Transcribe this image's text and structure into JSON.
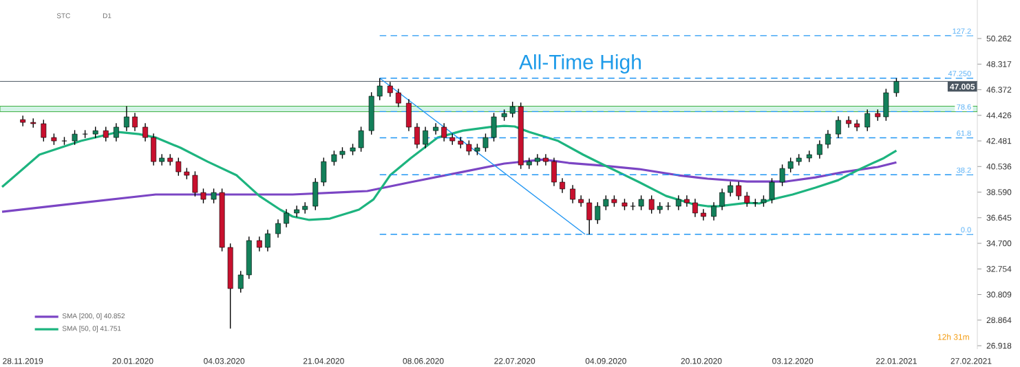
{
  "chart_data": {
    "type": "candlestick",
    "xlim": [
      "2019-11-17",
      "2021-03-02"
    ],
    "ylim": [
      26.66,
      53.19
    ],
    "xticks": [
      {
        "value": "2019-11-28",
        "label": "28.11.2019"
      },
      {
        "value": "2020-01-20",
        "label": "20.01.2020"
      },
      {
        "value": "2020-03-04",
        "label": "04.03.2020"
      },
      {
        "value": "2020-04-21",
        "label": "21.04.2020"
      },
      {
        "value": "2020-06-08",
        "label": "08.06.2020"
      },
      {
        "value": "2020-07-22",
        "label": "22.07.2020"
      },
      {
        "value": "2020-09-04",
        "label": "04.09.2020"
      },
      {
        "value": "2020-10-20",
        "label": "20.10.2020"
      },
      {
        "value": "2020-12-03",
        "label": "03.12.2020"
      },
      {
        "value": "2021-01-22",
        "label": "22.01.2021"
      },
      {
        "value": "2021-02-27",
        "label": "27.02.2021"
      }
    ],
    "yticks": [
      {
        "value": 26.918,
        "label": "26.918"
      },
      {
        "value": 28.864,
        "label": "28.864"
      },
      {
        "value": 30.809,
        "label": "30.809"
      },
      {
        "value": 32.754,
        "label": "32.754"
      },
      {
        "value": 34.7,
        "label": "34.700"
      },
      {
        "value": 36.645,
        "label": "36.645"
      },
      {
        "value": 38.59,
        "label": "38.590"
      },
      {
        "value": 40.536,
        "label": "40.536"
      },
      {
        "value": 42.481,
        "label": "42.481"
      },
      {
        "value": 44.426,
        "label": "44.426"
      },
      {
        "value": 46.372,
        "label": "46.372"
      },
      {
        "value": 48.317,
        "label": "48.317"
      },
      {
        "value": 50.262,
        "label": "50.262"
      }
    ],
    "legend": "bottom left",
    "bands": [
      {
        "axis": "y",
        "from": 44.7,
        "to": 45.12,
        "color": "#d3f3e6"
      }
    ],
    "ref_lines": [
      {
        "axis": "y",
        "value": 47.005,
        "label": "47.005",
        "color": "#4b5661"
      }
    ],
    "annotations": [
      "All-Time High",
      "STC",
      "D1",
      "12h 31m"
    ],
    "series": [
      {
        "x": [
          "2019-11-28",
          "2019-12-03",
          "2019-12-08",
          "2019-12-13",
          "2019-12-18",
          "2019-12-23",
          "2019-12-28",
          "2020-01-02",
          "2020-01-07",
          "2020-01-12",
          "2020-01-17",
          "2020-01-21",
          "2020-01-26",
          "2020-01-30",
          "2020-02-03",
          "2020-02-07",
          "2020-02-11",
          "2020-02-15",
          "2020-02-19",
          "2020-02-23",
          "2020-02-28",
          "2020-03-03",
          "2020-03-07",
          "2020-03-12",
          "2020-03-16",
          "2020-03-21",
          "2020-03-25",
          "2020-03-30",
          "2020-04-03",
          "2020-04-08",
          "2020-04-12",
          "2020-04-17",
          "2020-04-21",
          "2020-04-26",
          "2020-04-30",
          "2020-05-05",
          "2020-05-09",
          "2020-05-14",
          "2020-05-18",
          "2020-05-23",
          "2020-05-27",
          "2020-06-01",
          "2020-06-05",
          "2020-06-09",
          "2020-06-14",
          "2020-06-18",
          "2020-06-22",
          "2020-06-26",
          "2020-06-30",
          "2020-07-04",
          "2020-07-08",
          "2020-07-12",
          "2020-07-17",
          "2020-07-21",
          "2020-07-25",
          "2020-07-29",
          "2020-08-02",
          "2020-08-06",
          "2020-08-10",
          "2020-08-14",
          "2020-08-19",
          "2020-08-23",
          "2020-08-27",
          "2020-08-31",
          "2020-09-04",
          "2020-09-08",
          "2020-09-13",
          "2020-09-17",
          "2020-09-21",
          "2020-09-26",
          "2020-09-30",
          "2020-10-04",
          "2020-10-09",
          "2020-10-13",
          "2020-10-17",
          "2020-10-21",
          "2020-10-26",
          "2020-10-30",
          "2020-11-03",
          "2020-11-07",
          "2020-11-11",
          "2020-11-15",
          "2020-11-19",
          "2020-11-23",
          "2020-11-28",
          "2020-12-02",
          "2020-12-06",
          "2020-12-11",
          "2020-12-16",
          "2020-12-20",
          "2020-12-25",
          "2020-12-30",
          "2021-01-03",
          "2021-01-08",
          "2021-01-13",
          "2021-01-17",
          "2021-01-22"
        ],
        "ohlc": [
          [
            44.1,
            44.4,
            43.59,
            43.89
          ],
          [
            43.89,
            44.19,
            43.49,
            43.79
          ],
          [
            43.79,
            44.09,
            42.44,
            42.74
          ],
          [
            42.74,
            43.04,
            42.18,
            42.48
          ],
          [
            42.48,
            42.78,
            42.18,
            42.48
          ],
          [
            42.48,
            43.3,
            42.18,
            43.0
          ],
          [
            43.0,
            43.3,
            42.7,
            43.0
          ],
          [
            43.0,
            43.56,
            42.7,
            43.26
          ],
          [
            43.26,
            43.56,
            42.44,
            42.74
          ],
          [
            42.74,
            43.83,
            42.44,
            43.53
          ],
          [
            43.53,
            45.12,
            43.23,
            44.31
          ],
          [
            44.31,
            44.61,
            43.23,
            43.53
          ],
          [
            43.53,
            43.83,
            42.44,
            42.74
          ],
          [
            42.74,
            43.04,
            40.61,
            40.91
          ],
          [
            40.91,
            41.48,
            40.61,
            41.18
          ],
          [
            41.18,
            41.48,
            40.61,
            40.91
          ],
          [
            40.91,
            41.21,
            39.83,
            40.13
          ],
          [
            40.13,
            40.43,
            39.57,
            39.87
          ],
          [
            39.87,
            40.17,
            38.26,
            38.56
          ],
          [
            38.56,
            38.86,
            37.74,
            38.04
          ],
          [
            38.04,
            38.86,
            37.74,
            38.56
          ],
          [
            38.56,
            38.86,
            34.09,
            34.39
          ],
          [
            34.39,
            34.69,
            28.22,
            31.26
          ],
          [
            31.26,
            32.6,
            30.96,
            32.3
          ],
          [
            32.3,
            35.21,
            32.0,
            34.91
          ],
          [
            34.91,
            35.21,
            34.09,
            34.39
          ],
          [
            34.39,
            35.73,
            34.09,
            35.43
          ],
          [
            35.43,
            36.51,
            35.13,
            36.21
          ],
          [
            36.21,
            37.3,
            35.91,
            37.0
          ],
          [
            37.0,
            37.56,
            36.7,
            37.26
          ],
          [
            37.26,
            37.82,
            36.96,
            37.52
          ],
          [
            37.52,
            39.65,
            37.22,
            39.35
          ],
          [
            39.35,
            41.21,
            39.05,
            40.91
          ],
          [
            40.91,
            41.74,
            40.61,
            41.44
          ],
          [
            41.44,
            42.0,
            41.14,
            41.7
          ],
          [
            41.7,
            42.26,
            41.4,
            41.96
          ],
          [
            41.96,
            43.56,
            41.66,
            43.26
          ],
          [
            43.26,
            46.18,
            42.96,
            45.88
          ],
          [
            45.88,
            47.25,
            45.58,
            46.66
          ],
          [
            46.66,
            46.96,
            45.84,
            46.14
          ],
          [
            46.14,
            46.44,
            45.05,
            45.35
          ],
          [
            45.35,
            45.65,
            43.23,
            43.53
          ],
          [
            43.53,
            43.83,
            41.92,
            42.22
          ],
          [
            42.22,
            43.56,
            41.92,
            43.26
          ],
          [
            43.26,
            43.83,
            42.96,
            43.53
          ],
          [
            43.53,
            43.83,
            42.44,
            42.74
          ],
          [
            42.74,
            43.04,
            42.18,
            42.48
          ],
          [
            42.48,
            42.78,
            41.92,
            42.22
          ],
          [
            42.22,
            42.52,
            41.4,
            41.7
          ],
          [
            41.7,
            42.26,
            41.4,
            41.96
          ],
          [
            41.96,
            43.04,
            41.66,
            42.74
          ],
          [
            42.74,
            44.61,
            42.44,
            44.31
          ],
          [
            44.31,
            44.87,
            44.01,
            44.57
          ],
          [
            44.57,
            45.46,
            44.27,
            45.09
          ],
          [
            45.09,
            45.39,
            40.35,
            40.65
          ],
          [
            40.65,
            41.21,
            40.35,
            40.91
          ],
          [
            40.91,
            41.48,
            40.61,
            41.18
          ],
          [
            41.18,
            41.48,
            40.61,
            40.91
          ],
          [
            40.91,
            41.21,
            39.05,
            39.35
          ],
          [
            39.35,
            39.65,
            38.53,
            38.83
          ],
          [
            38.83,
            39.13,
            37.74,
            38.04
          ],
          [
            38.04,
            38.34,
            37.48,
            37.78
          ],
          [
            37.78,
            38.08,
            35.38,
            36.48
          ],
          [
            36.48,
            37.82,
            36.18,
            37.52
          ],
          [
            37.52,
            38.34,
            37.22,
            38.04
          ],
          [
            38.04,
            38.34,
            37.48,
            37.78
          ],
          [
            37.78,
            38.08,
            37.22,
            37.52
          ],
          [
            37.52,
            37.82,
            37.22,
            37.52
          ],
          [
            37.52,
            38.34,
            37.22,
            38.04
          ],
          [
            38.04,
            38.34,
            36.96,
            37.26
          ],
          [
            37.26,
            37.82,
            36.96,
            37.52
          ],
          [
            37.52,
            37.82,
            37.22,
            37.52
          ],
          [
            37.52,
            38.34,
            37.22,
            38.04
          ],
          [
            38.04,
            38.34,
            37.48,
            37.78
          ],
          [
            37.78,
            38.08,
            36.7,
            37.0
          ],
          [
            37.0,
            37.3,
            36.44,
            36.74
          ],
          [
            36.74,
            37.82,
            36.44,
            37.52
          ],
          [
            37.52,
            38.86,
            37.22,
            38.56
          ],
          [
            38.56,
            39.39,
            38.26,
            39.09
          ],
          [
            39.09,
            39.39,
            38.0,
            38.3
          ],
          [
            38.3,
            38.6,
            37.48,
            37.78
          ],
          [
            37.78,
            38.08,
            37.48,
            37.78
          ],
          [
            37.78,
            38.34,
            37.48,
            38.04
          ],
          [
            38.04,
            39.65,
            37.74,
            39.35
          ],
          [
            39.35,
            40.69,
            39.05,
            40.39
          ],
          [
            40.39,
            41.21,
            40.09,
            40.91
          ],
          [
            40.91,
            41.48,
            40.61,
            41.18
          ],
          [
            41.18,
            41.74,
            40.88,
            41.44
          ],
          [
            41.44,
            42.52,
            41.14,
            42.22
          ],
          [
            42.22,
            43.3,
            41.92,
            43.0
          ],
          [
            43.0,
            44.35,
            42.7,
            44.05
          ],
          [
            44.05,
            44.35,
            43.49,
            43.79
          ],
          [
            43.79,
            44.09,
            43.23,
            43.53
          ],
          [
            43.53,
            44.87,
            43.23,
            44.57
          ],
          [
            44.57,
            44.87,
            44.01,
            44.31
          ],
          [
            44.31,
            46.44,
            44.01,
            46.14
          ],
          [
            46.14,
            47.25,
            45.84,
            47.005
          ]
        ]
      },
      {
        "type": "line",
        "name": "SMA [200, 0] 40.852",
        "color": "#7b45c4",
        "x": [
          "2019-11-18",
          "2019-12-26",
          "2020-01-31",
          "2020-04-06",
          "2020-05-12",
          "2020-06-02",
          "2020-06-27",
          "2020-07-17",
          "2020-08-05",
          "2020-08-17",
          "2020-09-03",
          "2020-09-20",
          "2020-10-09",
          "2020-10-23",
          "2020-11-11",
          "2020-11-30",
          "2020-12-14",
          "2020-12-28",
          "2021-01-13",
          "2021-01-22"
        ],
        "values": [
          37.1,
          37.78,
          38.41,
          38.41,
          38.67,
          39.35,
          40.13,
          40.76,
          41.07,
          40.81,
          40.6,
          40.34,
          39.87,
          39.61,
          39.4,
          39.4,
          39.71,
          40.13,
          40.5,
          40.85
        ]
      },
      {
        "type": "line",
        "name": "SMA [50, 0] 41.751",
        "color": "#1db47f",
        "x": [
          "2019-11-18",
          "2019-12-06",
          "2019-12-26",
          "2020-01-13",
          "2020-01-23",
          "2020-01-31",
          "2020-02-12",
          "2020-02-25",
          "2020-03-10",
          "2020-03-21",
          "2020-03-31",
          "2020-04-06",
          "2020-04-14",
          "2020-04-24",
          "2020-05-08",
          "2020-05-15",
          "2020-05-23",
          "2020-06-02",
          "2020-06-15",
          "2020-06-27",
          "2020-07-10",
          "2020-07-17",
          "2020-07-22",
          "2020-07-29",
          "2020-08-12",
          "2020-08-24",
          "2020-09-05",
          "2020-09-20",
          "2020-10-03",
          "2020-10-16",
          "2020-10-23",
          "2020-10-28",
          "2020-11-11",
          "2020-11-17",
          "2020-11-23",
          "2020-12-03",
          "2020-12-14",
          "2020-12-25",
          "2021-01-05",
          "2021-01-16",
          "2021-01-22"
        ],
        "values": [
          38.98,
          41.44,
          42.48,
          43.16,
          43.0,
          42.74,
          41.96,
          40.91,
          39.87,
          38.3,
          37.26,
          36.74,
          36.48,
          36.58,
          37.26,
          38.04,
          39.87,
          41.18,
          42.74,
          43.26,
          43.53,
          43.63,
          43.58,
          43.16,
          42.48,
          41.44,
          40.5,
          39.35,
          38.3,
          37.68,
          37.52,
          37.52,
          37.78,
          37.73,
          38.04,
          38.41,
          38.93,
          39.5,
          40.39,
          41.18,
          41.75
        ]
      },
      {
        "type": "line",
        "color": "#2196f3",
        "x": [
          "2020-05-18",
          "2020-08-25"
        ],
        "values": [
          47.25,
          35.38
        ]
      },
      {
        "type": "line",
        "name": "127.2",
        "color": "#2196f3",
        "line_style": "dashed",
        "x": [
          "2020-05-18",
          "2021-02-28"
        ],
        "values": [
          50.48,
          50.48
        ]
      },
      {
        "type": "line",
        "name": "47.250",
        "color": "#2196f3",
        "line_style": "dashed",
        "x": [
          "2020-05-18",
          "2021-02-28"
        ],
        "values": [
          47.25,
          47.25
        ]
      },
      {
        "type": "line",
        "name": "78.6",
        "color": "#2196f3",
        "line_style": "dashed",
        "x": [
          "2020-05-18",
          "2021-02-28"
        ],
        "values": [
          44.71,
          44.71
        ]
      },
      {
        "type": "line",
        "name": "61.8",
        "color": "#2196f3",
        "line_style": "dashed",
        "x": [
          "2020-05-18",
          "2021-02-28"
        ],
        "values": [
          42.72,
          42.72
        ]
      },
      {
        "type": "line",
        "name": "38.2",
        "color": "#2196f3",
        "line_style": "dashed",
        "x": [
          "2020-05-18",
          "2021-02-28"
        ],
        "values": [
          39.91,
          39.91
        ]
      },
      {
        "type": "line",
        "name": "0.0",
        "color": "#2196f3",
        "line_style": "dashed",
        "x": [
          "2020-05-18",
          "2021-02-28"
        ],
        "values": [
          35.38,
          35.38
        ]
      }
    ]
  }
}
